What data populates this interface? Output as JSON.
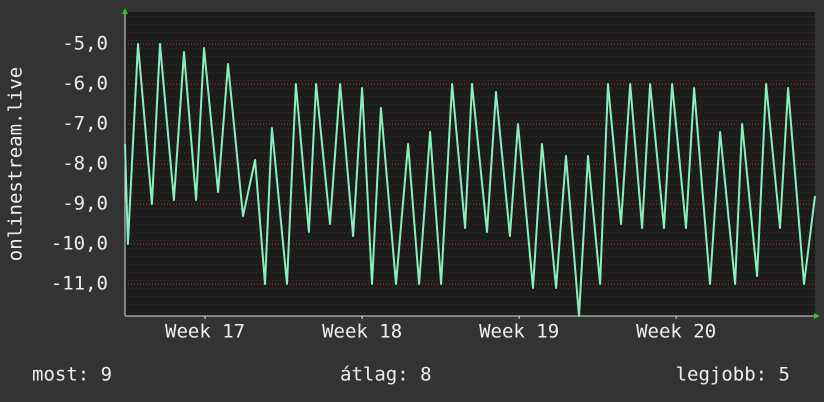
{
  "chart_data": {
    "type": "line",
    "ylabel": "onlinestream.live",
    "x": [
      0,
      0.13,
      0.58,
      1.2,
      1.56,
      2.18,
      2.63,
      3.17,
      3.52,
      4.15,
      4.59,
      5.26,
      5.8,
      6.24,
      6.55,
      7.22,
      7.62,
      8.2,
      8.52,
      9.14,
      9.59,
      10.17,
      10.57,
      11.01,
      11.41,
      12.08,
      12.62,
      13.11,
      13.6,
      14.09,
      14.58,
      15.16,
      15.47,
      16.14,
      16.54,
      17.16,
      17.52,
      18.19,
      18.59,
      19.22,
      19.66,
      20.24,
      20.64,
      21.18,
      21.53,
      22.11,
      22.52,
      23.05,
      23.41,
      24.03,
      24.39,
      25.01,
      25.37,
      26.08,
      26.53,
      27.2,
      27.51,
      28.18,
      28.58,
      29.2,
      29.56,
      30.27,
      30.76
    ],
    "series": [
      {
        "color": "#86f0be",
        "values": [
          -7.5,
          -10,
          -5,
          -9,
          -5,
          -8.9,
          -5.2,
          -8.9,
          -5.1,
          -8.7,
          -5.5,
          -9.3,
          -7.9,
          -11,
          -7.1,
          -11,
          -6,
          -9.7,
          -6,
          -9.5,
          -6,
          -9.8,
          -6.1,
          -11,
          -6.6,
          -11,
          -7.5,
          -11,
          -7.2,
          -11,
          -6,
          -9.6,
          -6,
          -9.7,
          -6.2,
          -9.8,
          -7,
          -11.1,
          -7.5,
          -11.1,
          -7.8,
          -11.8,
          -7.8,
          -11,
          -6,
          -9.5,
          -6,
          -9.6,
          -6,
          -9.6,
          -6,
          -9.6,
          -6.1,
          -11,
          -7.2,
          -11,
          -7,
          -10.8,
          -6,
          -9.6,
          -6.1,
          -11,
          -8.8
        ]
      }
    ],
    "xlim": [
      0,
      30.76
    ],
    "xticks": [
      {
        "value": 3.57,
        "label": "Week 17"
      },
      {
        "value": 10.57,
        "label": "Week 18"
      },
      {
        "value": 17.57,
        "label": "Week 19"
      },
      {
        "value": 24.57,
        "label": "Week 20"
      }
    ],
    "ylim": [
      -11.8,
      -4.2
    ],
    "yticks": [
      {
        "value": -5,
        "label": "-5,0"
      },
      {
        "value": -6,
        "label": "-6,0"
      },
      {
        "value": -7,
        "label": "-7,0"
      },
      {
        "value": -8,
        "label": "-8,0"
      },
      {
        "value": -9,
        "label": "-9,0"
      },
      {
        "value": -10,
        "label": "-10,0"
      },
      {
        "value": -11,
        "label": "-11,0"
      }
    ],
    "grid": true,
    "footer": [
      "most: 9",
      "átlag: 8",
      "legjobb: 5"
    ]
  }
}
